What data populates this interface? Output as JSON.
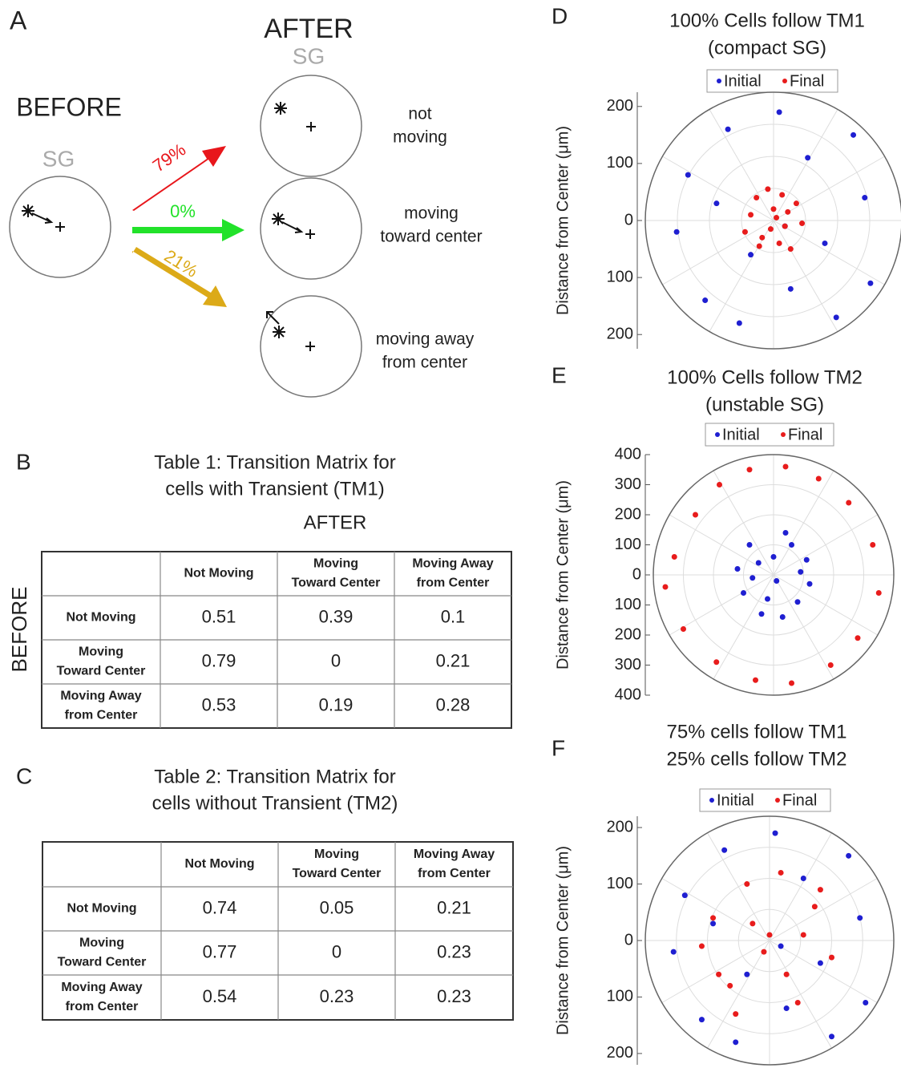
{
  "panel_a": {
    "letter": "A",
    "after": "AFTER",
    "sg_after": "SG",
    "before": "BEFORE",
    "sg_before": "SG",
    "arrows": [
      {
        "label": "79%",
        "color": "#e8161b"
      },
      {
        "label": "0%",
        "color": "#22e22a"
      },
      {
        "label": "21%",
        "color": "#dcaa18"
      }
    ],
    "outcomes": [
      [
        "not",
        "moving"
      ],
      [
        "moving",
        "toward center"
      ],
      [
        "moving away",
        "from center"
      ]
    ]
  },
  "tables": [
    {
      "letter": "B",
      "title": [
        "Table 1: Transition Matrix for",
        "cells with Transient (TM1)"
      ],
      "after": "AFTER",
      "before": "BEFORE",
      "header": [
        [
          "Not Moving"
        ],
        [
          "Moving",
          "Toward Center"
        ],
        [
          "Moving Away",
          "from Center"
        ]
      ],
      "rows": [
        {
          "label": [
            "Not Moving"
          ],
          "values": [
            0.51,
            0.39,
            0.1
          ]
        },
        {
          "label": [
            "Moving",
            "Toward Center"
          ],
          "values": [
            0.79,
            0,
            0.21
          ]
        },
        {
          "label": [
            "Moving Away",
            "from Center"
          ],
          "values": [
            0.53,
            0.19,
            0.28
          ]
        }
      ]
    },
    {
      "letter": "C",
      "title": [
        "Table 2: Transition Matrix for",
        "cells without Transient (TM2)"
      ],
      "header": [
        [
          "Not Moving"
        ],
        [
          "Moving",
          "Toward Center"
        ],
        [
          "Moving Away",
          "from Center"
        ]
      ],
      "rows": [
        {
          "label": [
            "Not Moving"
          ],
          "values": [
            0.74,
            0.05,
            0.21
          ]
        },
        {
          "label": [
            "Moving",
            "Toward Center"
          ],
          "values": [
            0.77,
            0,
            0.23
          ]
        },
        {
          "label": [
            "Moving Away",
            "from Center"
          ],
          "values": [
            0.54,
            0.23,
            0.23
          ]
        }
      ]
    }
  ],
  "chart_data": [
    {
      "type": "polar-scatter",
      "panel": "D",
      "title": [
        "100% Cells follow TM1",
        "(compact SG)"
      ],
      "y_label": "Distance from Center (μm)",
      "ylim": [
        -225,
        225
      ],
      "yticks": [
        {
          "value": 200,
          "label": "200"
        },
        {
          "value": 100,
          "label": "100"
        },
        {
          "value": 0,
          "label": "0"
        },
        {
          "value": -100,
          "label": "100"
        },
        {
          "value": -200,
          "label": "200"
        }
      ],
      "series": [
        {
          "name": "Initial",
          "color": "#1f1fd1",
          "x": [
            -150,
            -120,
            -80,
            -40,
            10,
            60,
            110,
            160,
            -170,
            -100,
            30,
            90,
            140,
            -60,
            20,
            170
          ],
          "y": [
            80,
            -140,
            160,
            -60,
            190,
            110,
            -170,
            40,
            -20,
            30,
            -120,
            -40,
            150,
            -180,
            -10,
            -110
          ]
        },
        {
          "name": "Final",
          "color": "#e81c1c",
          "x": [
            -40,
            -20,
            0,
            20,
            40,
            -30,
            10,
            30,
            -10,
            50,
            -50,
            5,
            25,
            -25,
            15,
            -5
          ],
          "y": [
            10,
            -30,
            20,
            -10,
            30,
            40,
            -40,
            -50,
            55,
            -5,
            -20,
            5,
            15,
            -45,
            45,
            -15
          ]
        }
      ]
    },
    {
      "type": "polar-scatter",
      "panel": "E",
      "title": [
        "100% Cells follow TM2",
        "(unstable SG)"
      ],
      "y_label": "Distance from Center (μm)",
      "ylim": [
        -400,
        400
      ],
      "yticks": [
        {
          "value": 400,
          "label": "400"
        },
        {
          "value": 300,
          "label": "300"
        },
        {
          "value": 200,
          "label": "200"
        },
        {
          "value": 100,
          "label": "100"
        },
        {
          "value": 0,
          "label": "0"
        },
        {
          "value": -100,
          "label": "100"
        },
        {
          "value": -200,
          "label": "200"
        },
        {
          "value": -300,
          "label": "300"
        },
        {
          "value": -400,
          "label": "400"
        }
      ],
      "series": [
        {
          "name": "Initial",
          "color": "#1f1fd1",
          "x": [
            -120,
            -80,
            -40,
            0,
            40,
            80,
            120,
            -100,
            -50,
            10,
            60,
            110,
            -20,
            30,
            -70,
            90
          ],
          "y": [
            20,
            100,
            -130,
            60,
            140,
            -90,
            -30,
            -60,
            40,
            -20,
            100,
            50,
            -80,
            -140,
            -10,
            10
          ]
        },
        {
          "name": "Final",
          "color": "#e81c1c",
          "x": [
            -330,
            -260,
            -180,
            -80,
            40,
            150,
            250,
            330,
            350,
            280,
            190,
            60,
            -60,
            -190,
            -300,
            -360
          ],
          "y": [
            60,
            200,
            300,
            350,
            360,
            320,
            240,
            100,
            -60,
            -210,
            -300,
            -360,
            -350,
            -290,
            -180,
            -40
          ]
        }
      ]
    },
    {
      "type": "polar-scatter",
      "panel": "F",
      "title": [
        "75% cells follow TM1",
        "25% cells follow TM2"
      ],
      "y_label": "Distance from Center (μm)",
      "ylim": [
        -220,
        220
      ],
      "yticks": [
        {
          "value": 200,
          "label": "200"
        },
        {
          "value": 100,
          "label": "100"
        },
        {
          "value": 0,
          "label": "0"
        },
        {
          "value": -100,
          "label": "100"
        },
        {
          "value": -200,
          "label": "200"
        }
      ],
      "series": [
        {
          "name": "Initial",
          "color": "#1f1fd1",
          "x": [
            -150,
            -120,
            -80,
            -40,
            10,
            60,
            110,
            160,
            -170,
            -100,
            30,
            90,
            140,
            -60,
            20,
            170
          ],
          "y": [
            80,
            -140,
            160,
            -60,
            190,
            110,
            -170,
            40,
            -20,
            30,
            -120,
            -40,
            150,
            -180,
            -10,
            -110
          ]
        },
        {
          "name": "Final",
          "color": "#e81c1c",
          "x": [
            -100,
            -70,
            -40,
            -10,
            20,
            50,
            80,
            110,
            -90,
            -30,
            30,
            90,
            -60,
            0,
            60,
            -120
          ],
          "y": [
            40,
            -80,
            100,
            -20,
            120,
            -110,
            60,
            -30,
            -60,
            30,
            -60,
            90,
            -130,
            10,
            10,
            -10
          ]
        }
      ]
    }
  ]
}
